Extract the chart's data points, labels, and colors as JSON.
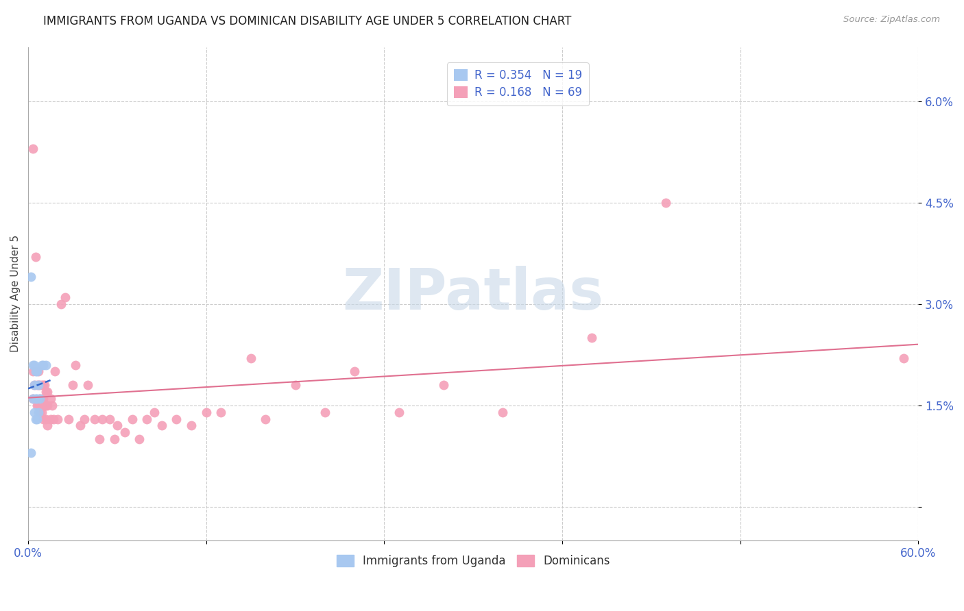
{
  "title": "IMMIGRANTS FROM UGANDA VS DOMINICAN DISABILITY AGE UNDER 5 CORRELATION CHART",
  "source": "Source: ZipAtlas.com",
  "ylabel": "Disability Age Under 5",
  "yticks": [
    0.0,
    0.015,
    0.03,
    0.045,
    0.06
  ],
  "ytick_labels": [
    "",
    "1.5%",
    "3.0%",
    "4.5%",
    "6.0%"
  ],
  "xticks": [
    0.0,
    0.12,
    0.24,
    0.36,
    0.48,
    0.6
  ],
  "xtick_labels": [
    "0.0%",
    "",
    "",
    "",
    "",
    "60.0%"
  ],
  "xmin": 0.0,
  "xmax": 0.6,
  "ymin": -0.005,
  "ymax": 0.068,
  "uganda_R": 0.354,
  "uganda_N": 19,
  "dominican_R": 0.168,
  "dominican_N": 69,
  "uganda_color": "#a8c8f0",
  "dominican_color": "#f4a0b8",
  "uganda_line_color": "#3366cc",
  "dominican_line_color": "#e07090",
  "uganda_x": [
    0.002,
    0.002,
    0.003,
    0.003,
    0.004,
    0.004,
    0.004,
    0.005,
    0.005,
    0.005,
    0.006,
    0.006,
    0.006,
    0.007,
    0.007,
    0.008,
    0.009,
    0.01,
    0.012
  ],
  "uganda_y": [
    0.034,
    0.008,
    0.021,
    0.016,
    0.021,
    0.018,
    0.014,
    0.02,
    0.016,
    0.013,
    0.02,
    0.016,
    0.013,
    0.018,
    0.014,
    0.016,
    0.021,
    0.021,
    0.021
  ],
  "dominican_x": [
    0.003,
    0.003,
    0.004,
    0.005,
    0.006,
    0.006,
    0.007,
    0.007,
    0.007,
    0.008,
    0.008,
    0.008,
    0.009,
    0.009,
    0.009,
    0.01,
    0.01,
    0.01,
    0.01,
    0.011,
    0.011,
    0.012,
    0.012,
    0.012,
    0.013,
    0.013,
    0.013,
    0.015,
    0.015,
    0.016,
    0.017,
    0.018,
    0.02,
    0.022,
    0.025,
    0.027,
    0.03,
    0.032,
    0.035,
    0.038,
    0.04,
    0.045,
    0.048,
    0.05,
    0.055,
    0.058,
    0.06,
    0.065,
    0.07,
    0.075,
    0.08,
    0.085,
    0.09,
    0.1,
    0.11,
    0.12,
    0.13,
    0.15,
    0.16,
    0.18,
    0.2,
    0.22,
    0.25,
    0.28,
    0.32,
    0.38,
    0.43,
    0.59,
    0.003
  ],
  "dominican_y": [
    0.02,
    0.016,
    0.018,
    0.037,
    0.018,
    0.015,
    0.02,
    0.018,
    0.015,
    0.018,
    0.016,
    0.014,
    0.018,
    0.016,
    0.014,
    0.018,
    0.016,
    0.015,
    0.013,
    0.018,
    0.015,
    0.017,
    0.015,
    0.013,
    0.017,
    0.015,
    0.012,
    0.016,
    0.013,
    0.015,
    0.013,
    0.02,
    0.013,
    0.03,
    0.031,
    0.013,
    0.018,
    0.021,
    0.012,
    0.013,
    0.018,
    0.013,
    0.01,
    0.013,
    0.013,
    0.01,
    0.012,
    0.011,
    0.013,
    0.01,
    0.013,
    0.014,
    0.012,
    0.013,
    0.012,
    0.014,
    0.014,
    0.022,
    0.013,
    0.018,
    0.014,
    0.02,
    0.014,
    0.018,
    0.014,
    0.025,
    0.045,
    0.022,
    0.053
  ],
  "background_color": "#ffffff",
  "grid_color": "#cccccc",
  "title_fontsize": 12,
  "axis_label_fontsize": 11,
  "tick_fontsize": 12,
  "legend_fontsize": 12,
  "watermark": "ZIPatlas",
  "watermark_color": "#c8d8e8",
  "watermark_alpha": 0.6
}
